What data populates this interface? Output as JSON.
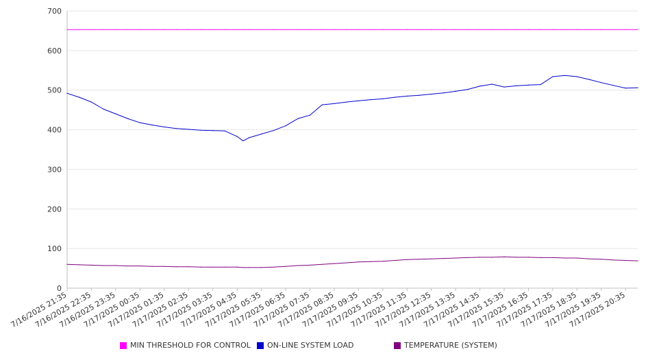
{
  "chart_data": {
    "type": "line",
    "title": "",
    "xlabel": "",
    "ylabel": "",
    "ylim": [
      0,
      700
    ],
    "y_ticks": [
      0,
      100,
      200,
      300,
      400,
      500,
      600,
      700
    ],
    "grid": true,
    "legend_position": "bottom",
    "x_tick_labels": [
      "7/16/2025 21:35",
      "7/16/2025 22:35",
      "7/16/2025 23:35",
      "7/17/2025 00:35",
      "7/17/2025 01:35",
      "7/17/2025 02:35",
      "7/17/2025 03:35",
      "7/17/2025 04:35",
      "7/17/2025 05:35",
      "7/17/2025 06:35",
      "7/17/2025 07:35",
      "7/17/2025 08:35",
      "7/17/2025 09:35",
      "7/17/2025 10:35",
      "7/17/2025 11:35",
      "7/17/2025 12:35",
      "7/17/2025 13:35",
      "7/17/2025 14:35",
      "7/17/2025 15:35",
      "7/17/2025 16:35",
      "7/17/2025 17:35",
      "7/17/2025 18:35",
      "7/17/2025 19:35",
      "7/17/2025 20:35"
    ],
    "x": [
      "7/16/2025 21:35",
      "7/16/2025 22:05",
      "7/16/2025 22:35",
      "7/16/2025 23:05",
      "7/16/2025 23:35",
      "7/17/2025 00:05",
      "7/17/2025 00:35",
      "7/17/2025 01:05",
      "7/17/2025 01:35",
      "7/17/2025 02:05",
      "7/17/2025 02:35",
      "7/17/2025 03:05",
      "7/17/2025 03:35",
      "7/17/2025 04:05",
      "7/17/2025 04:35",
      "7/17/2025 04:50",
      "7/17/2025 05:05",
      "7/17/2025 05:35",
      "7/17/2025 06:05",
      "7/17/2025 06:35",
      "7/17/2025 07:05",
      "7/17/2025 07:35",
      "7/17/2025 08:05",
      "7/17/2025 08:35",
      "7/17/2025 09:05",
      "7/17/2025 09:35",
      "7/17/2025 10:05",
      "7/17/2025 10:35",
      "7/17/2025 11:05",
      "7/17/2025 11:35",
      "7/17/2025 12:05",
      "7/17/2025 12:35",
      "7/17/2025 13:05",
      "7/17/2025 13:35",
      "7/17/2025 14:05",
      "7/17/2025 14:35",
      "7/17/2025 15:05",
      "7/17/2025 15:35",
      "7/17/2025 16:05",
      "7/17/2025 16:35",
      "7/17/2025 17:05",
      "7/17/2025 17:35",
      "7/17/2025 18:05",
      "7/17/2025 18:35",
      "7/17/2025 19:05",
      "7/17/2025 19:35",
      "7/17/2025 20:05",
      "7/17/2025 20:35",
      "7/17/2025 21:05"
    ],
    "series": [
      {
        "name": "MIN THRESHOLD FOR CONTROL",
        "color": "#ff00ff",
        "values": [
          653,
          653,
          653,
          653,
          653,
          653,
          653,
          653,
          653,
          653,
          653,
          653,
          653,
          653,
          653,
          653,
          653,
          653,
          653,
          653,
          653,
          653,
          653,
          653,
          653,
          653,
          653,
          653,
          653,
          653,
          653,
          653,
          653,
          653,
          653,
          653,
          653,
          653,
          653,
          653,
          653,
          653,
          653,
          653,
          653,
          653,
          653,
          653,
          653
        ]
      },
      {
        "name": "ON-LINE SYSTEM LOAD",
        "color": "#0000cc",
        "values": [
          492,
          482,
          470,
          452,
          440,
          428,
          418,
          412,
          407,
          403,
          401,
          399,
          398,
          397,
          383,
          372,
          380,
          389,
          398,
          410,
          428,
          437,
          463,
          466,
          470,
          473,
          476,
          478,
          482,
          485,
          487,
          490,
          493,
          497,
          502,
          510,
          515,
          508,
          511,
          513,
          514,
          534,
          537,
          534,
          527,
          519,
          512,
          505,
          506
        ]
      },
      {
        "name": "TEMPERATURE (SYSTEM)",
        "color": "#800080",
        "values": [
          60,
          59,
          58,
          57,
          57,
          56,
          56,
          55,
          55,
          54,
          54,
          53,
          53,
          53,
          53,
          52,
          52,
          52,
          53,
          55,
          57,
          58,
          60,
          62,
          64,
          66,
          67,
          68,
          70,
          72,
          73,
          74,
          75,
          76,
          77,
          78,
          78,
          79,
          78,
          78,
          77,
          77,
          76,
          76,
          74,
          73,
          71,
          70,
          69
        ]
      }
    ]
  }
}
